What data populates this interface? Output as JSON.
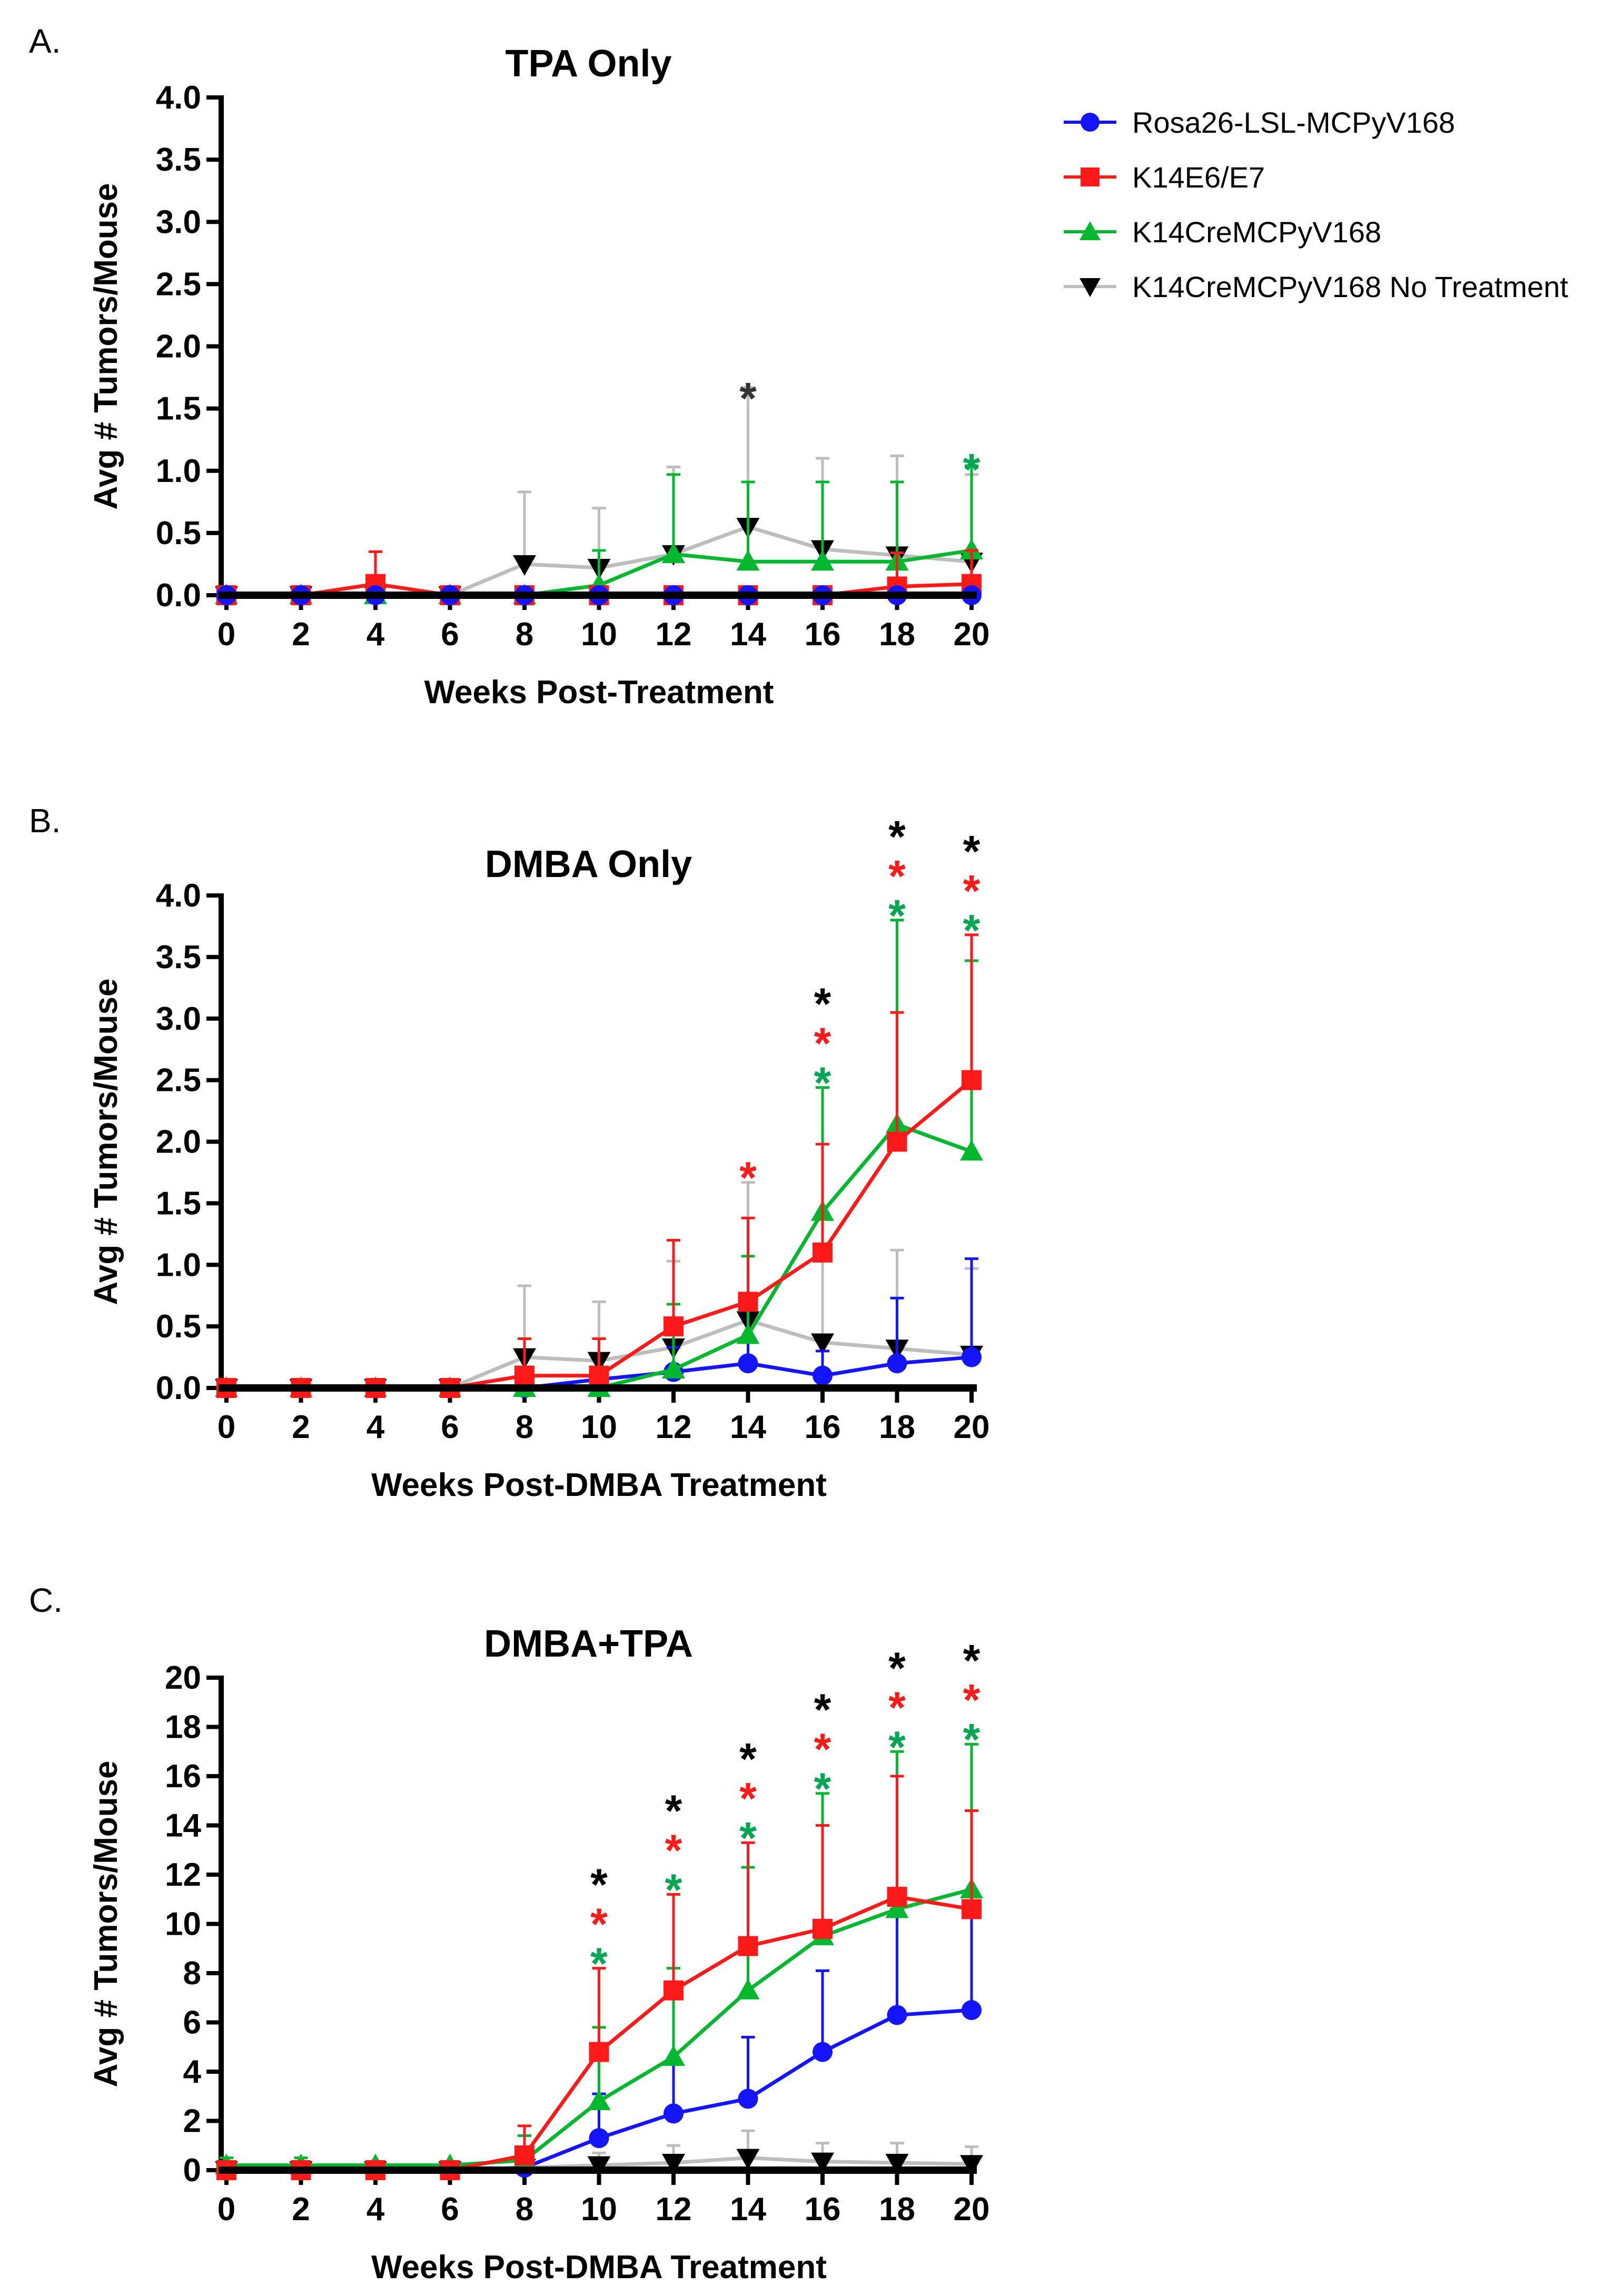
{
  "colors": {
    "rosa": "#1414ff",
    "k14e6": "#ff1a1a",
    "k14cre": "#00b82e",
    "notreat": "#000000",
    "notreat_line": "#bdbdbd",
    "star_green": "#00a651",
    "axis": "#000000"
  },
  "legend": [
    {
      "label": "Rosa26-LSL-MCPyV168",
      "key": "rosa",
      "marker": "circle"
    },
    {
      "label": "K14E6/E7",
      "key": "k14e6",
      "marker": "square"
    },
    {
      "label": "K14CreMCPyV168",
      "key": "k14cre",
      "marker": "triangle-up"
    },
    {
      "label": "K14CreMCPyV168 No Treatment",
      "key": "notreat",
      "marker": "triangle-down"
    }
  ],
  "chart_data": [
    {
      "type": "line",
      "panel_label": "A.",
      "title": "TPA Only",
      "xlabel": "Weeks Post-Treatment",
      "ylabel": "Avg # Tumors/Mouse",
      "x": [
        0,
        2,
        4,
        6,
        8,
        10,
        12,
        14,
        16,
        18,
        20
      ],
      "xticks": [
        "0",
        "2",
        "4",
        "6",
        "8",
        "10",
        "12",
        "14",
        "16",
        "18",
        "20"
      ],
      "yticks": [
        "0.0",
        "0.5",
        "1.0",
        "1.5",
        "2.0",
        "2.5",
        "3.0",
        "3.5",
        "4.0"
      ],
      "ylim": [
        0,
        4
      ],
      "series": [
        {
          "name": "K14CreMCPyV168 No Treatment",
          "key": "notreat",
          "values": [
            0,
            0,
            0,
            0,
            0.25,
            0.22,
            0.33,
            0.55,
            0.37,
            0.32,
            0.27
          ],
          "errors": [
            0,
            0,
            0,
            0,
            0.58,
            0.48,
            0.7,
            1.12,
            0.73,
            0.8,
            0.7
          ]
        },
        {
          "name": "K14CreMCPyV168",
          "key": "k14cre",
          "values": [
            0,
            0,
            0,
            0,
            0,
            0.08,
            0.33,
            0.27,
            0.27,
            0.27,
            0.36
          ],
          "errors": [
            0,
            0,
            0,
            0,
            0,
            0.28,
            0.64,
            0.64,
            0.64,
            0.64,
            0.68
          ]
        },
        {
          "name": "K14E6/E7",
          "key": "k14e6",
          "values": [
            0,
            0,
            0.09,
            0,
            0,
            0,
            0,
            0,
            0,
            0.07,
            0.09
          ],
          "errors": [
            0,
            0,
            0.26,
            0,
            0,
            0,
            0,
            0,
            0,
            0.27,
            0.27
          ]
        },
        {
          "name": "Rosa26-LSL-MCPyV168",
          "key": "rosa",
          "values": [
            0,
            0,
            0,
            0,
            0,
            0,
            0,
            0,
            0,
            0,
            0
          ],
          "errors": [
            0,
            0,
            0,
            0,
            0,
            0,
            0,
            0,
            0,
            0,
            0
          ]
        }
      ],
      "significance": [
        {
          "x": 14,
          "stars": [
            "notreat_star"
          ]
        },
        {
          "x": 20,
          "stars": [
            "green"
          ]
        }
      ]
    },
    {
      "type": "line",
      "panel_label": "B.",
      "title": "DMBA Only",
      "xlabel": "Weeks Post-DMBA Treatment",
      "ylabel": "Avg # Tumors/Mouse",
      "x": [
        0,
        2,
        4,
        6,
        8,
        10,
        12,
        14,
        16,
        18,
        20
      ],
      "xticks": [
        "0",
        "2",
        "4",
        "6",
        "8",
        "10",
        "12",
        "14",
        "16",
        "18",
        "20"
      ],
      "yticks": [
        "0.0",
        "0.5",
        "1.0",
        "1.5",
        "2.0",
        "2.5",
        "3.0",
        "3.5",
        "4.0"
      ],
      "ylim": [
        0,
        4
      ],
      "series": [
        {
          "name": "K14CreMCPyV168 No Treatment",
          "key": "notreat",
          "values": [
            0,
            0,
            0,
            0,
            0.25,
            0.22,
            0.33,
            0.55,
            0.37,
            0.32,
            0.27
          ],
          "errors": [
            0,
            0,
            0,
            0,
            0.58,
            0.48,
            0.7,
            1.12,
            0.73,
            0.8,
            0.7
          ]
        },
        {
          "name": "Rosa26-LSL-MCPyV168",
          "key": "rosa",
          "values": [
            0,
            0,
            0,
            0,
            0,
            0.07,
            0.13,
            0.2,
            0.1,
            0.2,
            0.25
          ],
          "errors": [
            0,
            0,
            0,
            0,
            0,
            0.33,
            0.2,
            0.2,
            0.2,
            0.53,
            0.8
          ]
        },
        {
          "name": "K14CreMCPyV168",
          "key": "k14cre",
          "values": [
            0,
            0,
            0,
            0,
            0,
            0,
            0.15,
            0.43,
            1.43,
            2.14,
            1.92
          ],
          "errors": [
            0,
            0,
            0,
            0,
            0,
            0,
            0.53,
            0.64,
            1.01,
            1.66,
            1.55
          ]
        },
        {
          "name": "K14E6/E7",
          "key": "k14e6",
          "values": [
            0,
            0,
            0,
            0,
            0.1,
            0.1,
            0.5,
            0.7,
            1.1,
            2.0,
            2.5
          ],
          "errors": [
            0,
            0,
            0,
            0,
            0.3,
            0.3,
            0.7,
            0.68,
            0.88,
            1.05,
            1.18
          ]
        }
      ],
      "significance": [
        {
          "x": 14,
          "stars": [
            "red"
          ]
        },
        {
          "x": 16,
          "stars": [
            "black",
            "red",
            "green"
          ]
        },
        {
          "x": 18,
          "stars": [
            "black",
            "red",
            "green"
          ]
        },
        {
          "x": 20,
          "stars": [
            "black",
            "red",
            "green"
          ]
        }
      ]
    },
    {
      "type": "line",
      "panel_label": "C.",
      "title": "DMBA+TPA",
      "xlabel": "Weeks Post-DMBA Treatment",
      "ylabel": "Avg # Tumors/Mouse",
      "x": [
        0,
        2,
        4,
        6,
        8,
        10,
        12,
        14,
        16,
        18,
        20
      ],
      "xticks": [
        "0",
        "2",
        "4",
        "6",
        "8",
        "10",
        "12",
        "14",
        "16",
        "18",
        "20"
      ],
      "yticks": [
        "0",
        "2",
        "4",
        "6",
        "8",
        "10",
        "12",
        "14",
        "16",
        "18",
        "20"
      ],
      "ylim": [
        0,
        20
      ],
      "series": [
        {
          "name": "K14CreMCPyV168 No Treatment",
          "key": "notreat",
          "values": [
            0,
            0,
            0,
            0,
            0.1,
            0.2,
            0.3,
            0.5,
            0.35,
            0.3,
            0.25
          ],
          "errors": [
            0,
            0,
            0,
            0,
            0.4,
            0.5,
            0.7,
            1.1,
            0.75,
            0.8,
            0.7
          ]
        },
        {
          "name": "Rosa26-LSL-MCPyV168",
          "key": "rosa",
          "values": [
            0,
            0,
            0,
            0,
            0.1,
            1.3,
            2.3,
            2.9,
            4.8,
            6.3,
            6.5
          ],
          "errors": [
            0,
            0,
            0,
            0,
            0.4,
            1.8,
            2.2,
            2.5,
            3.3,
            4.3,
            4.4
          ]
        },
        {
          "name": "K14CreMCPyV168",
          "key": "k14cre",
          "values": [
            0.2,
            0.2,
            0.2,
            0.2,
            0.4,
            2.8,
            4.6,
            7.3,
            9.5,
            10.6,
            11.4
          ],
          "errors": [
            0.3,
            0.3,
            0.1,
            0.1,
            1.0,
            3.0,
            3.6,
            5.0,
            5.8,
            6.4,
            5.9
          ]
        },
        {
          "name": "K14E6/E7",
          "key": "k14e6",
          "values": [
            0,
            0,
            0,
            0,
            0.6,
            4.8,
            7.3,
            9.1,
            9.8,
            11.1,
            10.6
          ],
          "errors": [
            0,
            0,
            0,
            0,
            1.2,
            3.4,
            3.9,
            4.2,
            4.2,
            4.9,
            4.0
          ]
        }
      ],
      "significance": [
        {
          "x": 10,
          "stars": [
            "black",
            "red",
            "green"
          ]
        },
        {
          "x": 12,
          "stars": [
            "black",
            "red",
            "green"
          ]
        },
        {
          "x": 14,
          "stars": [
            "black",
            "red",
            "green"
          ]
        },
        {
          "x": 16,
          "stars": [
            "black",
            "red",
            "green"
          ]
        },
        {
          "x": 18,
          "stars": [
            "black",
            "red",
            "green"
          ]
        },
        {
          "x": 20,
          "stars": [
            "black",
            "red",
            "green"
          ]
        }
      ]
    }
  ],
  "star_symbol": "*"
}
